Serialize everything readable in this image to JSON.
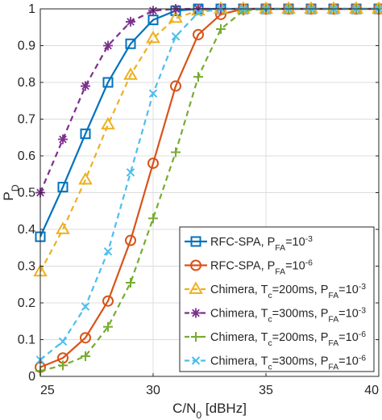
{
  "chart_data": {
    "type": "line",
    "title": "",
    "xlabel": {
      "base": "C/N",
      "sub": "0",
      "rest": " [dBHz]"
    },
    "ylabel": {
      "base": "P",
      "sub": "D"
    },
    "xlim": [
      25,
      40
    ],
    "ylim": [
      0,
      1
    ],
    "xticks": [
      25,
      30,
      35,
      40
    ],
    "yticks": [
      0,
      0.1,
      0.2,
      0.3,
      0.4,
      0.5,
      0.6,
      0.7,
      0.8,
      0.9,
      1
    ],
    "grid": true,
    "legend_position": "bottom-right",
    "x": [
      25,
      26,
      27,
      28,
      29,
      30,
      31,
      32,
      33,
      34,
      35,
      36,
      37,
      38,
      39,
      40
    ],
    "series": [
      {
        "legend": [
          [
            "RFC-SPA, P",
            ""
          ],
          [
            "FA",
            "sub"
          ],
          [
            "=10",
            ""
          ],
          [
            "-3",
            "sup"
          ]
        ],
        "color": "#0072BD",
        "dash": "solid",
        "marker": "square",
        "values": [
          0.38,
          0.515,
          0.66,
          0.8,
          0.905,
          0.97,
          0.995,
          1,
          1,
          1,
          1,
          1,
          1,
          1,
          1,
          1
        ]
      },
      {
        "legend": [
          [
            "RFC-SPA, P",
            ""
          ],
          [
            "FA",
            "sub"
          ],
          [
            "=10",
            ""
          ],
          [
            "-6",
            "sup"
          ]
        ],
        "color": "#D95319",
        "dash": "solid",
        "marker": "circle",
        "values": [
          0.025,
          0.05,
          0.105,
          0.205,
          0.37,
          0.58,
          0.79,
          0.93,
          0.985,
          1,
          1,
          1,
          1,
          1,
          1,
          1
        ]
      },
      {
        "legend": [
          [
            "Chimera, T",
            ""
          ],
          [
            "c",
            "sub"
          ],
          [
            "=200ms, P",
            ""
          ],
          [
            "FA",
            "sub"
          ],
          [
            "=10",
            ""
          ],
          [
            "-3",
            "sup"
          ]
        ],
        "color": "#EDB120",
        "dash": "dashed",
        "marker": "triangle",
        "values": [
          0.285,
          0.4,
          0.535,
          0.685,
          0.82,
          0.92,
          0.975,
          0.995,
          1,
          1,
          1,
          1,
          1,
          1,
          1,
          1
        ]
      },
      {
        "legend": [
          [
            "Chimera, T",
            ""
          ],
          [
            "c",
            "sub"
          ],
          [
            "=300ms, P",
            ""
          ],
          [
            "FA",
            "sub"
          ],
          [
            "=10",
            ""
          ],
          [
            "-3",
            "sup"
          ]
        ],
        "color": "#7E2F8E",
        "dash": "dashed",
        "marker": "asterisk",
        "values": [
          0.5,
          0.645,
          0.79,
          0.9,
          0.965,
          0.995,
          1,
          1,
          1,
          1,
          1,
          1,
          1,
          1,
          1,
          1
        ]
      },
      {
        "legend": [
          [
            "Chimera, T",
            ""
          ],
          [
            "c",
            "sub"
          ],
          [
            "=200ms, P",
            ""
          ],
          [
            "FA",
            "sub"
          ],
          [
            "=10",
            ""
          ],
          [
            "-6",
            "sup"
          ]
        ],
        "color": "#77AC30",
        "dash": "dashed",
        "marker": "plus",
        "values": [
          0.015,
          0.03,
          0.055,
          0.135,
          0.255,
          0.43,
          0.61,
          0.815,
          0.945,
          0.995,
          1,
          1,
          1,
          1,
          1,
          1
        ]
      },
      {
        "legend": [
          [
            "Chimera, T",
            ""
          ],
          [
            "c",
            "sub"
          ],
          [
            "=300ms, P",
            ""
          ],
          [
            "FA",
            "sub"
          ],
          [
            "=10",
            ""
          ],
          [
            "-6",
            "sup"
          ]
        ],
        "color": "#4DBEEE",
        "dash": "dashed",
        "marker": "x",
        "values": [
          0.045,
          0.095,
          0.19,
          0.34,
          0.555,
          0.77,
          0.925,
          0.99,
          1,
          1,
          1,
          1,
          1,
          1,
          1,
          1
        ]
      }
    ]
  }
}
